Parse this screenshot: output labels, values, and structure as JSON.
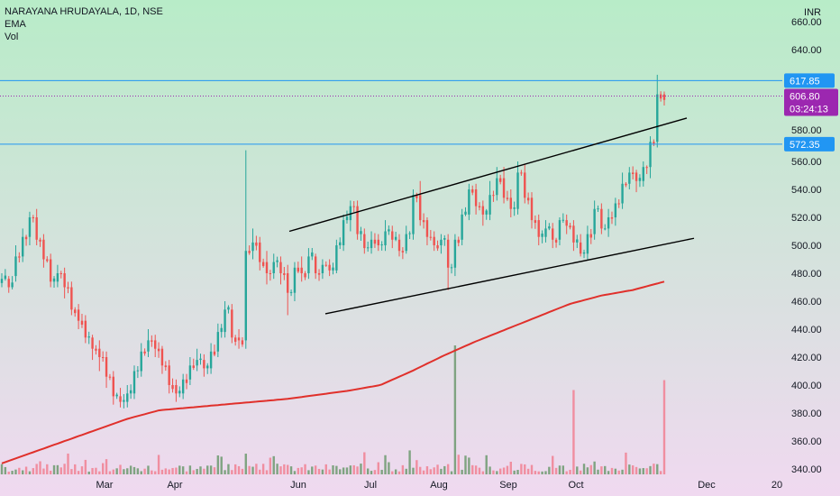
{
  "legend": {
    "title": "NARAYANA HRUDAYALA, 1D, NSE",
    "indicator_1": "EMA",
    "indicator_2": "Vol"
  },
  "currency": "INR",
  "price_tags": {
    "line_upper": "617.85",
    "line_lower": "572.35",
    "last_price": "606.80",
    "countdown": "03:24:13"
  },
  "colors": {
    "bull": "#26a69a",
    "bear": "#ef5350",
    "bull_volume": "#7fa381",
    "bear_volume": "#f08ea0",
    "ema": "#e0302b",
    "level_lines": "#2196f3",
    "last_price_tag": "#9c27b0",
    "trendlines": "#000000",
    "bg_top": "#b8ecc8",
    "bg_bottom": "#f0d9f0"
  },
  "chart_data": {
    "type": "candlestick",
    "title": "NARAYANA HRUDAYALA, 1D, NSE",
    "y_axis_ticks": [
      "340.00",
      "360.00",
      "380.00",
      "400.00",
      "420.00",
      "440.00",
      "460.00",
      "480.00",
      "500.00",
      "520.00",
      "540.00",
      "560.00",
      "580.00",
      "600.00",
      "620.00",
      "640.00",
      "660.00"
    ],
    "ylim": [
      336,
      680
    ],
    "x_axis_labels": [
      "Mar",
      "Apr",
      "Jun",
      "Jul",
      "Aug",
      "Sep",
      "Oct",
      "Dec",
      "20"
    ],
    "horizontal_levels": [
      617.85,
      572.35
    ],
    "last_price": 606.8,
    "ohlc_anchors": [
      [
        476,
        473,
        480,
        470
      ],
      [
        470,
        476,
        478,
        466
      ],
      [
        492,
        478,
        500,
        474
      ],
      [
        506,
        492,
        512,
        488
      ],
      [
        520,
        506,
        524,
        500
      ],
      [
        504,
        520,
        526,
        500
      ],
      [
        490,
        504,
        508,
        484
      ],
      [
        474,
        490,
        494,
        470
      ],
      [
        480,
        474,
        486,
        470
      ],
      [
        470,
        480,
        484,
        462
      ],
      [
        454,
        470,
        474,
        450
      ],
      [
        446,
        454,
        458,
        440
      ],
      [
        434,
        446,
        450,
        430
      ],
      [
        426,
        434,
        436,
        418
      ],
      [
        420,
        426,
        432,
        410
      ],
      [
        406,
        420,
        424,
        398
      ],
      [
        392,
        406,
        410,
        386
      ],
      [
        388,
        392,
        398,
        384
      ],
      [
        394,
        388,
        400,
        384
      ],
      [
        410,
        394,
        414,
        390
      ],
      [
        424,
        410,
        430,
        406
      ],
      [
        432,
        424,
        440,
        420
      ],
      [
        426,
        432,
        436,
        420
      ],
      [
        414,
        426,
        428,
        408
      ],
      [
        400,
        414,
        418,
        394
      ],
      [
        394,
        400,
        404,
        388
      ],
      [
        404,
        394,
        408,
        390
      ],
      [
        414,
        404,
        420,
        400
      ],
      [
        418,
        414,
        426,
        410
      ],
      [
        412,
        418,
        422,
        406
      ],
      [
        424,
        412,
        430,
        408
      ],
      [
        438,
        424,
        444,
        420
      ],
      [
        454,
        438,
        460,
        434
      ],
      [
        434,
        454,
        458,
        430
      ],
      [
        432,
        434,
        440,
        426
      ],
      [
        496,
        432,
        568,
        426
      ],
      [
        502,
        496,
        512,
        490
      ],
      [
        488,
        502,
        506,
        482
      ],
      [
        480,
        488,
        496,
        472
      ],
      [
        488,
        480,
        494,
        476
      ],
      [
        480,
        488,
        492,
        472
      ],
      [
        466,
        480,
        486,
        450
      ],
      [
        484,
        466,
        488,
        460
      ],
      [
        480,
        484,
        492,
        474
      ],
      [
        492,
        480,
        498,
        476
      ],
      [
        480,
        492,
        494,
        476
      ],
      [
        486,
        480,
        490,
        476
      ],
      [
        482,
        486,
        490,
        478
      ],
      [
        500,
        482,
        504,
        480
      ],
      [
        518,
        500,
        522,
        496
      ],
      [
        528,
        518,
        532,
        510
      ],
      [
        508,
        528,
        532,
        504
      ],
      [
        498,
        508,
        512,
        494
      ],
      [
        504,
        498,
        510,
        494
      ],
      [
        500,
        504,
        508,
        496
      ],
      [
        510,
        500,
        518,
        496
      ],
      [
        504,
        510,
        514,
        498
      ],
      [
        496,
        504,
        508,
        492
      ],
      [
        508,
        496,
        514,
        494
      ],
      [
        536,
        508,
        540,
        504
      ],
      [
        518,
        536,
        546,
        514
      ],
      [
        506,
        518,
        520,
        500
      ],
      [
        500,
        506,
        510,
        496
      ],
      [
        504,
        500,
        508,
        494
      ],
      [
        484,
        504,
        508,
        468
      ],
      [
        504,
        484,
        508,
        478
      ],
      [
        522,
        504,
        526,
        500
      ],
      [
        540,
        522,
        544,
        518
      ],
      [
        528,
        540,
        544,
        522
      ],
      [
        522,
        528,
        532,
        514
      ],
      [
        536,
        522,
        546,
        518
      ],
      [
        548,
        536,
        556,
        532
      ],
      [
        534,
        548,
        556,
        530
      ],
      [
        526,
        534,
        540,
        520
      ],
      [
        552,
        526,
        560,
        522
      ],
      [
        534,
        552,
        558,
        530
      ],
      [
        518,
        534,
        538,
        512
      ],
      [
        506,
        518,
        522,
        500
      ],
      [
        512,
        506,
        518,
        502
      ],
      [
        504,
        512,
        516,
        498
      ],
      [
        518,
        504,
        520,
        500
      ],
      [
        514,
        518,
        522,
        508
      ],
      [
        502,
        514,
        518,
        496
      ],
      [
        494,
        502,
        508,
        492
      ],
      [
        508,
        494,
        514,
        490
      ],
      [
        526,
        508,
        532,
        504
      ],
      [
        512,
        526,
        530,
        508
      ],
      [
        520,
        512,
        526,
        506
      ],
      [
        530,
        520,
        534,
        514
      ],
      [
        544,
        530,
        552,
        526
      ],
      [
        552,
        544,
        556,
        540
      ],
      [
        546,
        552,
        554,
        538
      ],
      [
        556,
        546,
        560,
        542
      ],
      [
        574,
        556,
        578,
        548
      ],
      [
        608,
        574,
        622,
        570
      ],
      [
        604,
        608,
        610,
        600
      ]
    ],
    "ema_anchors": [
      344,
      352,
      360,
      368,
      376,
      382,
      384,
      386,
      388,
      390,
      393,
      396,
      400,
      410,
      421,
      431,
      440,
      449,
      458,
      464,
      468,
      474
    ],
    "volume_peaks": [
      {
        "bar_from_end": 0,
        "relative": 0.19,
        "direction": "up"
      },
      {
        "bar_from_end": 26,
        "relative": 0.17,
        "direction": "up"
      },
      {
        "bar_from_end": 60,
        "relative": 0.26,
        "direction": "up"
      }
    ]
  }
}
